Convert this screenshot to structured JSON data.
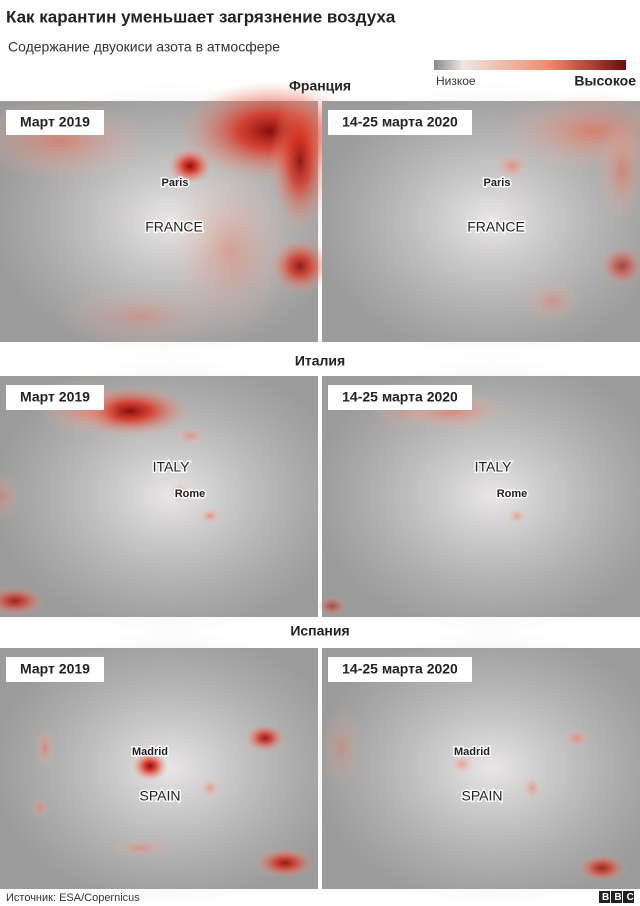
{
  "header": {
    "title": "Как карантин уменьшает загрязнение воздуха",
    "subtitle": "Содержание двуокиси азота в атмосфере"
  },
  "legend": {
    "low": "Низкое",
    "high": "Высокое"
  },
  "sections": [
    {
      "title": "Франция",
      "maps": [
        {
          "period": "Март 2019",
          "labels": [
            "Paris",
            "FRANCE"
          ]
        },
        {
          "period": "14-25 марта 2020",
          "labels": [
            "Paris",
            "FRANCE"
          ]
        }
      ]
    },
    {
      "title": "Италия",
      "maps": [
        {
          "period": "Март 2019",
          "labels": [
            "ITALY",
            "Rome"
          ]
        },
        {
          "period": "14-25 марта 2020",
          "labels": [
            "ITALY",
            "Rome"
          ]
        }
      ]
    },
    {
      "title": "Испания",
      "maps": [
        {
          "period": "Март 2019",
          "labels": [
            "Madrid",
            "SPAIN"
          ]
        },
        {
          "period": "14-25 марта 2020",
          "labels": [
            "Madrid",
            "SPAIN"
          ]
        }
      ]
    }
  ],
  "footer": {
    "source": "Источник: ESA/Copernicus",
    "logo": "BBC"
  }
}
